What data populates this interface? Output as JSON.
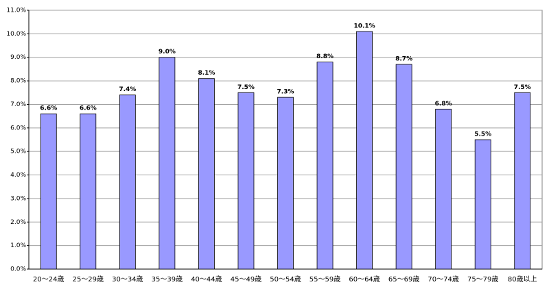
{
  "chart_data": {
    "type": "bar",
    "categories": [
      "20～24歳",
      "25～29歳",
      "30～34歳",
      "35～39歳",
      "40～44歳",
      "45～49歳",
      "50～54歳",
      "55～59歳",
      "60～64歳",
      "65～69歳",
      "70～74歳",
      "75～79歳",
      "80歳以上"
    ],
    "values": [
      6.6,
      6.6,
      7.4,
      9.0,
      8.1,
      7.5,
      7.3,
      8.8,
      10.1,
      8.7,
      6.8,
      5.5,
      7.5
    ],
    "value_labels": [
      "6.6%",
      "6.6%",
      "7.4%",
      "9.0%",
      "8.1%",
      "7.5%",
      "7.3%",
      "8.8%",
      "10.1%",
      "8.7%",
      "6.8%",
      "5.5%",
      "7.5%"
    ],
    "color": "#9999ff",
    "ylim": [
      0,
      11
    ],
    "yticks": [
      {
        "value": 0,
        "label": "0.0%"
      },
      {
        "value": 1,
        "label": "1.0%"
      },
      {
        "value": 2,
        "label": "2.0%"
      },
      {
        "value": 3,
        "label": "3.0%"
      },
      {
        "value": 4,
        "label": "4.0%"
      },
      {
        "value": 5,
        "label": "5.0%"
      },
      {
        "value": 6,
        "label": "6.0%"
      },
      {
        "value": 7,
        "label": "7.0%"
      },
      {
        "value": 8,
        "label": "8.0%"
      },
      {
        "value": 9,
        "label": "9.0%"
      },
      {
        "value": 10,
        "label": "10.0%"
      },
      {
        "value": 11,
        "label": "11.0%"
      }
    ],
    "grid": true
  }
}
